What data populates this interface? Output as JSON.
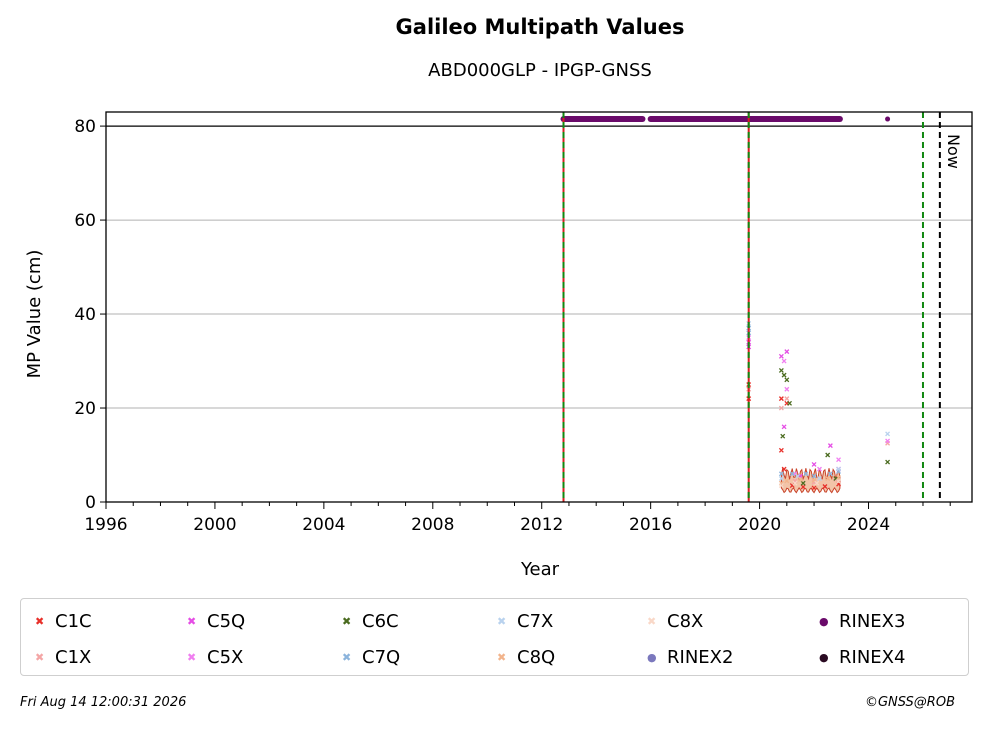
{
  "chart_data": {
    "type": "scatter",
    "title": "Galileo Multipath Values",
    "subtitle": "ABD000GLP - IPGP-GNSS",
    "xlabel": "Year",
    "ylabel": "MP Value (cm)",
    "xlim": [
      1996,
      2027.8
    ],
    "ylim": [
      0,
      83
    ],
    "xticks": [
      "1996",
      "2000",
      "2004",
      "2008",
      "2012",
      "2016",
      "2020",
      "2024"
    ],
    "yticks": [
      "0",
      "20",
      "40",
      "60",
      "80"
    ],
    "grid": "horizontal",
    "reference_line_y": 80,
    "vertical_lines": [
      {
        "x": 2012.8,
        "style": "green-red-dashed"
      },
      {
        "x": 2019.6,
        "style": "green-red-dashed"
      },
      {
        "x": 2026.0,
        "style": "green-dashed"
      },
      {
        "x": 2026.62,
        "style": "black-dashed",
        "label": "Now"
      }
    ],
    "rinex3_segments": [
      [
        2012.8,
        2015.7
      ],
      [
        2016.0,
        2019.55
      ],
      [
        2019.62,
        2022.95
      ]
    ],
    "rinex3_points": [
      2024.7
    ],
    "series": [
      {
        "name": "C1C",
        "color": "#e8302a",
        "marker": "x",
        "points": [
          [
            2019.6,
            22
          ],
          [
            2019.6,
            25
          ],
          [
            2020.8,
            22
          ],
          [
            2020.8,
            11
          ],
          [
            2020.9,
            7
          ],
          [
            2021.0,
            21
          ],
          [
            2021.2,
            3.5
          ],
          [
            2021.6,
            3.2
          ],
          [
            2022.0,
            3.0
          ],
          [
            2022.4,
            3.3
          ],
          [
            2022.9,
            3.8
          ]
        ]
      },
      {
        "name": "C1X",
        "color": "#f4a6a6",
        "marker": "x",
        "points": [
          [
            2019.6,
            24
          ],
          [
            2020.8,
            20
          ],
          [
            2021.0,
            22
          ],
          [
            2021.3,
            4.5
          ],
          [
            2022.0,
            4.2
          ],
          [
            2022.8,
            4.8
          ],
          [
            2024.7,
            12.5
          ]
        ]
      },
      {
        "name": "C5Q",
        "color": "#e54de5",
        "marker": "x",
        "points": [
          [
            2019.6,
            34
          ],
          [
            2019.6,
            33
          ],
          [
            2020.8,
            31
          ],
          [
            2021.0,
            32
          ],
          [
            2020.9,
            16
          ],
          [
            2021.5,
            5.5
          ],
          [
            2022.0,
            8
          ],
          [
            2022.6,
            12
          ],
          [
            2022.9,
            7
          ]
        ]
      },
      {
        "name": "C5X",
        "color": "#f07ff0",
        "marker": "x",
        "points": [
          [
            2019.6,
            35
          ],
          [
            2020.9,
            30
          ],
          [
            2021.0,
            24
          ],
          [
            2021.3,
            6
          ],
          [
            2022.2,
            7
          ],
          [
            2022.9,
            9
          ],
          [
            2024.7,
            13
          ]
        ]
      },
      {
        "name": "C6C",
        "color": "#4a6b1f",
        "marker": "x",
        "points": [
          [
            2020.8,
            28
          ],
          [
            2020.9,
            27
          ],
          [
            2021.0,
            26
          ],
          [
            2020.85,
            14
          ],
          [
            2021.1,
            21
          ],
          [
            2021.6,
            4
          ],
          [
            2022.5,
            10
          ],
          [
            2022.8,
            5
          ],
          [
            2024.7,
            8.5
          ]
        ]
      },
      {
        "name": "C7Q",
        "color": "#8cb4dc",
        "marker": "x",
        "points": [
          [
            2019.6,
            37
          ],
          [
            2019.6,
            36
          ],
          [
            2020.8,
            6
          ],
          [
            2021.2,
            6
          ],
          [
            2021.7,
            6
          ],
          [
            2022.0,
            5.5
          ],
          [
            2022.6,
            6
          ],
          [
            2022.9,
            6.5
          ]
        ]
      },
      {
        "name": "C7X",
        "color": "#b9d2ee",
        "marker": "x",
        "points": [
          [
            2019.6,
            38
          ],
          [
            2020.8,
            5
          ],
          [
            2021.4,
            5.5
          ],
          [
            2022.2,
            5
          ],
          [
            2022.9,
            7
          ],
          [
            2024.7,
            14.5
          ]
        ]
      },
      {
        "name": "C8Q",
        "color": "#f2b48c",
        "marker": "x",
        "points": [
          [
            2020.8,
            4
          ],
          [
            2021.0,
            4.5
          ],
          [
            2021.5,
            4.8
          ],
          [
            2022.0,
            4.6
          ],
          [
            2022.5,
            5
          ],
          [
            2022.9,
            5.2
          ]
        ]
      },
      {
        "name": "C8X",
        "color": "#f9d8c8",
        "marker": "x",
        "points": [
          [
            2020.8,
            3.5
          ],
          [
            2021.3,
            4
          ],
          [
            2022.1,
            4
          ],
          [
            2022.9,
            4.4
          ]
        ]
      },
      {
        "name": "RINEX2",
        "color": "#7b78bd",
        "marker": "o",
        "points": []
      },
      {
        "name": "RINEX3",
        "color": "#6a0a6a",
        "marker": "o",
        "points": []
      },
      {
        "name": "RINEX4",
        "color": "#2a0a22",
        "marker": "o",
        "points": []
      }
    ]
  },
  "footer": {
    "timestamp": "Fri Aug 14 12:00:31 2026",
    "credit": "©GNSS@ROB"
  }
}
